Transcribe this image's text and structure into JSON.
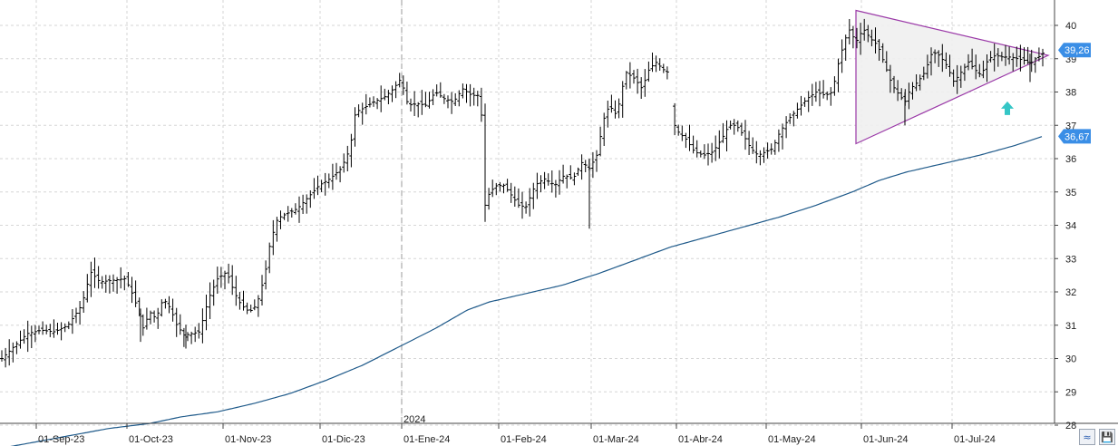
{
  "chart_data": {
    "type": "ohlc",
    "price_axis": {
      "min": 28,
      "max": 40.5,
      "ticks": [
        28,
        29,
        30,
        31,
        32,
        33,
        34,
        35,
        36,
        37,
        38,
        39,
        40
      ],
      "side": "right"
    },
    "x_ticks": [
      "01-Sep-23",
      "01-Oct-23",
      "01-Nov-23",
      "01-Dic-23",
      "01-Ene-24",
      "01-Feb-24",
      "01-Mar-24",
      "01-Abr-24",
      "01-May-24",
      "01-Jun-24",
      "01-Jul-24"
    ],
    "year_marker": "2024",
    "grid": true,
    "colors": {
      "bars": "#000000",
      "moving_average": "#1f5a8a",
      "triangle": "#9b3aa8",
      "triangle_fill": "#efefef",
      "tag": "#3a8ee6",
      "arrow": "#35c6c6"
    },
    "moving_average_waypoints": [
      [
        0,
        27.3
      ],
      [
        60,
        27.6
      ],
      [
        120,
        27.9
      ],
      [
        165,
        28.05
      ],
      [
        200,
        28.25
      ],
      [
        240,
        28.4
      ],
      [
        280,
        28.65
      ],
      [
        320,
        28.95
      ],
      [
        360,
        29.35
      ],
      [
        400,
        29.8
      ],
      [
        440,
        30.35
      ],
      [
        480,
        30.9
      ],
      [
        515,
        31.45
      ],
      [
        540,
        31.7
      ],
      [
        580,
        31.95
      ],
      [
        620,
        32.2
      ],
      [
        660,
        32.55
      ],
      [
        700,
        32.95
      ],
      [
        740,
        33.35
      ],
      [
        780,
        33.65
      ],
      [
        820,
        33.95
      ],
      [
        860,
        34.25
      ],
      [
        900,
        34.6
      ],
      [
        940,
        35.0
      ],
      [
        970,
        35.35
      ],
      [
        1000,
        35.6
      ],
      [
        1040,
        35.85
      ],
      [
        1080,
        36.1
      ],
      [
        1120,
        36.4
      ],
      [
        1150,
        36.67
      ]
    ],
    "price_waypoints": [
      [
        2,
        30.0
      ],
      [
        15,
        30.35
      ],
      [
        30,
        30.75
      ],
      [
        45,
        30.85
      ],
      [
        60,
        30.8
      ],
      [
        75,
        31.0
      ],
      [
        90,
        31.6
      ],
      [
        100,
        32.6
      ],
      [
        110,
        32.3
      ],
      [
        125,
        32.35
      ],
      [
        138,
        32.4
      ],
      [
        145,
        32.0
      ],
      [
        152,
        31.5
      ],
      [
        158,
        30.9
      ],
      [
        165,
        31.4
      ],
      [
        172,
        31.2
      ],
      [
        180,
        31.8
      ],
      [
        188,
        31.5
      ],
      [
        195,
        31.0
      ],
      [
        203,
        30.7
      ],
      [
        212,
        30.75
      ],
      [
        220,
        30.8
      ],
      [
        230,
        31.8
      ],
      [
        240,
        32.4
      ],
      [
        250,
        32.6
      ],
      [
        258,
        32.0
      ],
      [
        266,
        31.6
      ],
      [
        275,
        31.4
      ],
      [
        283,
        31.6
      ],
      [
        292,
        32.5
      ],
      [
        298,
        33.5
      ],
      [
        306,
        34.2
      ],
      [
        316,
        34.35
      ],
      [
        328,
        34.5
      ],
      [
        340,
        34.85
      ],
      [
        352,
        35.2
      ],
      [
        364,
        35.4
      ],
      [
        376,
        35.7
      ],
      [
        386,
        36.3
      ],
      [
        392,
        37.4
      ],
      [
        400,
        37.5
      ],
      [
        412,
        37.7
      ],
      [
        424,
        37.85
      ],
      [
        434,
        38.1
      ],
      [
        442,
        38.4
      ],
      [
        450,
        37.6
      ],
      [
        460,
        37.65
      ],
      [
        470,
        37.6
      ],
      [
        480,
        38.0
      ],
      [
        490,
        37.8
      ],
      [
        500,
        37.7
      ],
      [
        510,
        38.1
      ],
      [
        520,
        37.9
      ],
      [
        530,
        37.9
      ],
      [
        535,
        34.6
      ],
      [
        540,
        35.0
      ],
      [
        548,
        35.2
      ],
      [
        556,
        35.2
      ],
      [
        564,
        34.9
      ],
      [
        572,
        34.6
      ],
      [
        580,
        34.55
      ],
      [
        590,
        35.2
      ],
      [
        600,
        35.4
      ],
      [
        612,
        35.2
      ],
      [
        622,
        35.5
      ],
      [
        632,
        35.4
      ],
      [
        642,
        35.9
      ],
      [
        650,
        35.7
      ],
      [
        658,
        36.1
      ],
      [
        666,
        37.2
      ],
      [
        672,
        37.6
      ],
      [
        680,
        37.3
      ],
      [
        690,
        38.6
      ],
      [
        700,
        38.4
      ],
      [
        708,
        38.1
      ],
      [
        716,
        38.7
      ],
      [
        724,
        38.9
      ],
      [
        730,
        38.7
      ],
      [
        736,
        38.6
      ],
      [
        742,
        37.1
      ],
      [
        748,
        36.8
      ],
      [
        756,
        36.6
      ],
      [
        766,
        36.2
      ],
      [
        776,
        36.1
      ],
      [
        786,
        36.2
      ],
      [
        796,
        36.6
      ],
      [
        804,
        37.0
      ],
      [
        812,
        37.0
      ],
      [
        820,
        36.7
      ],
      [
        828,
        36.3
      ],
      [
        836,
        36.1
      ],
      [
        844,
        36.2
      ],
      [
        852,
        36.3
      ],
      [
        860,
        36.8
      ],
      [
        870,
        37.2
      ],
      [
        880,
        37.5
      ],
      [
        890,
        37.8
      ],
      [
        900,
        38.0
      ],
      [
        910,
        37.9
      ],
      [
        918,
        38.0
      ],
      [
        924,
        38.8
      ],
      [
        930,
        39.4
      ],
      [
        936,
        39.9
      ],
      [
        944,
        39.5
      ],
      [
        952,
        39.9
      ],
      [
        960,
        39.6
      ],
      [
        968,
        39.4
      ],
      [
        976,
        38.8
      ],
      [
        984,
        38.2
      ],
      [
        992,
        37.9
      ],
      [
        998,
        37.7
      ],
      [
        1004,
        38.1
      ],
      [
        1012,
        38.3
      ],
      [
        1020,
        38.6
      ],
      [
        1028,
        39.2
      ],
      [
        1036,
        39.1
      ],
      [
        1044,
        38.8
      ],
      [
        1052,
        38.3
      ],
      [
        1060,
        38.6
      ],
      [
        1068,
        38.9
      ],
      [
        1074,
        38.7
      ],
      [
        1082,
        38.5
      ],
      [
        1090,
        39.0
      ],
      [
        1098,
        39.1
      ],
      [
        1106,
        39.05
      ],
      [
        1114,
        39.05
      ],
      [
        1122,
        39.0
      ],
      [
        1130,
        38.95
      ],
      [
        1136,
        38.85
      ],
      [
        1142,
        39.0
      ],
      [
        1148,
        39.1
      ],
      [
        1153,
        39.26
      ]
    ],
    "gaps": [
      [
        736,
        742
      ]
    ],
    "spikes": [
      [
        535,
        34.1
      ],
      [
        650,
        33.9
      ],
      [
        998,
        37.0
      ],
      [
        1136,
        38.3
      ],
      [
        155,
        30.5
      ],
      [
        205,
        30.3
      ]
    ],
    "triangle": {
      "apex_top": [
        944,
        40.45
      ],
      "apex_bottom": [
        944,
        36.45
      ],
      "right_tip": [
        1156,
        39.1
      ]
    },
    "last_price_label": "39,26",
    "ma_label": "36,67"
  }
}
